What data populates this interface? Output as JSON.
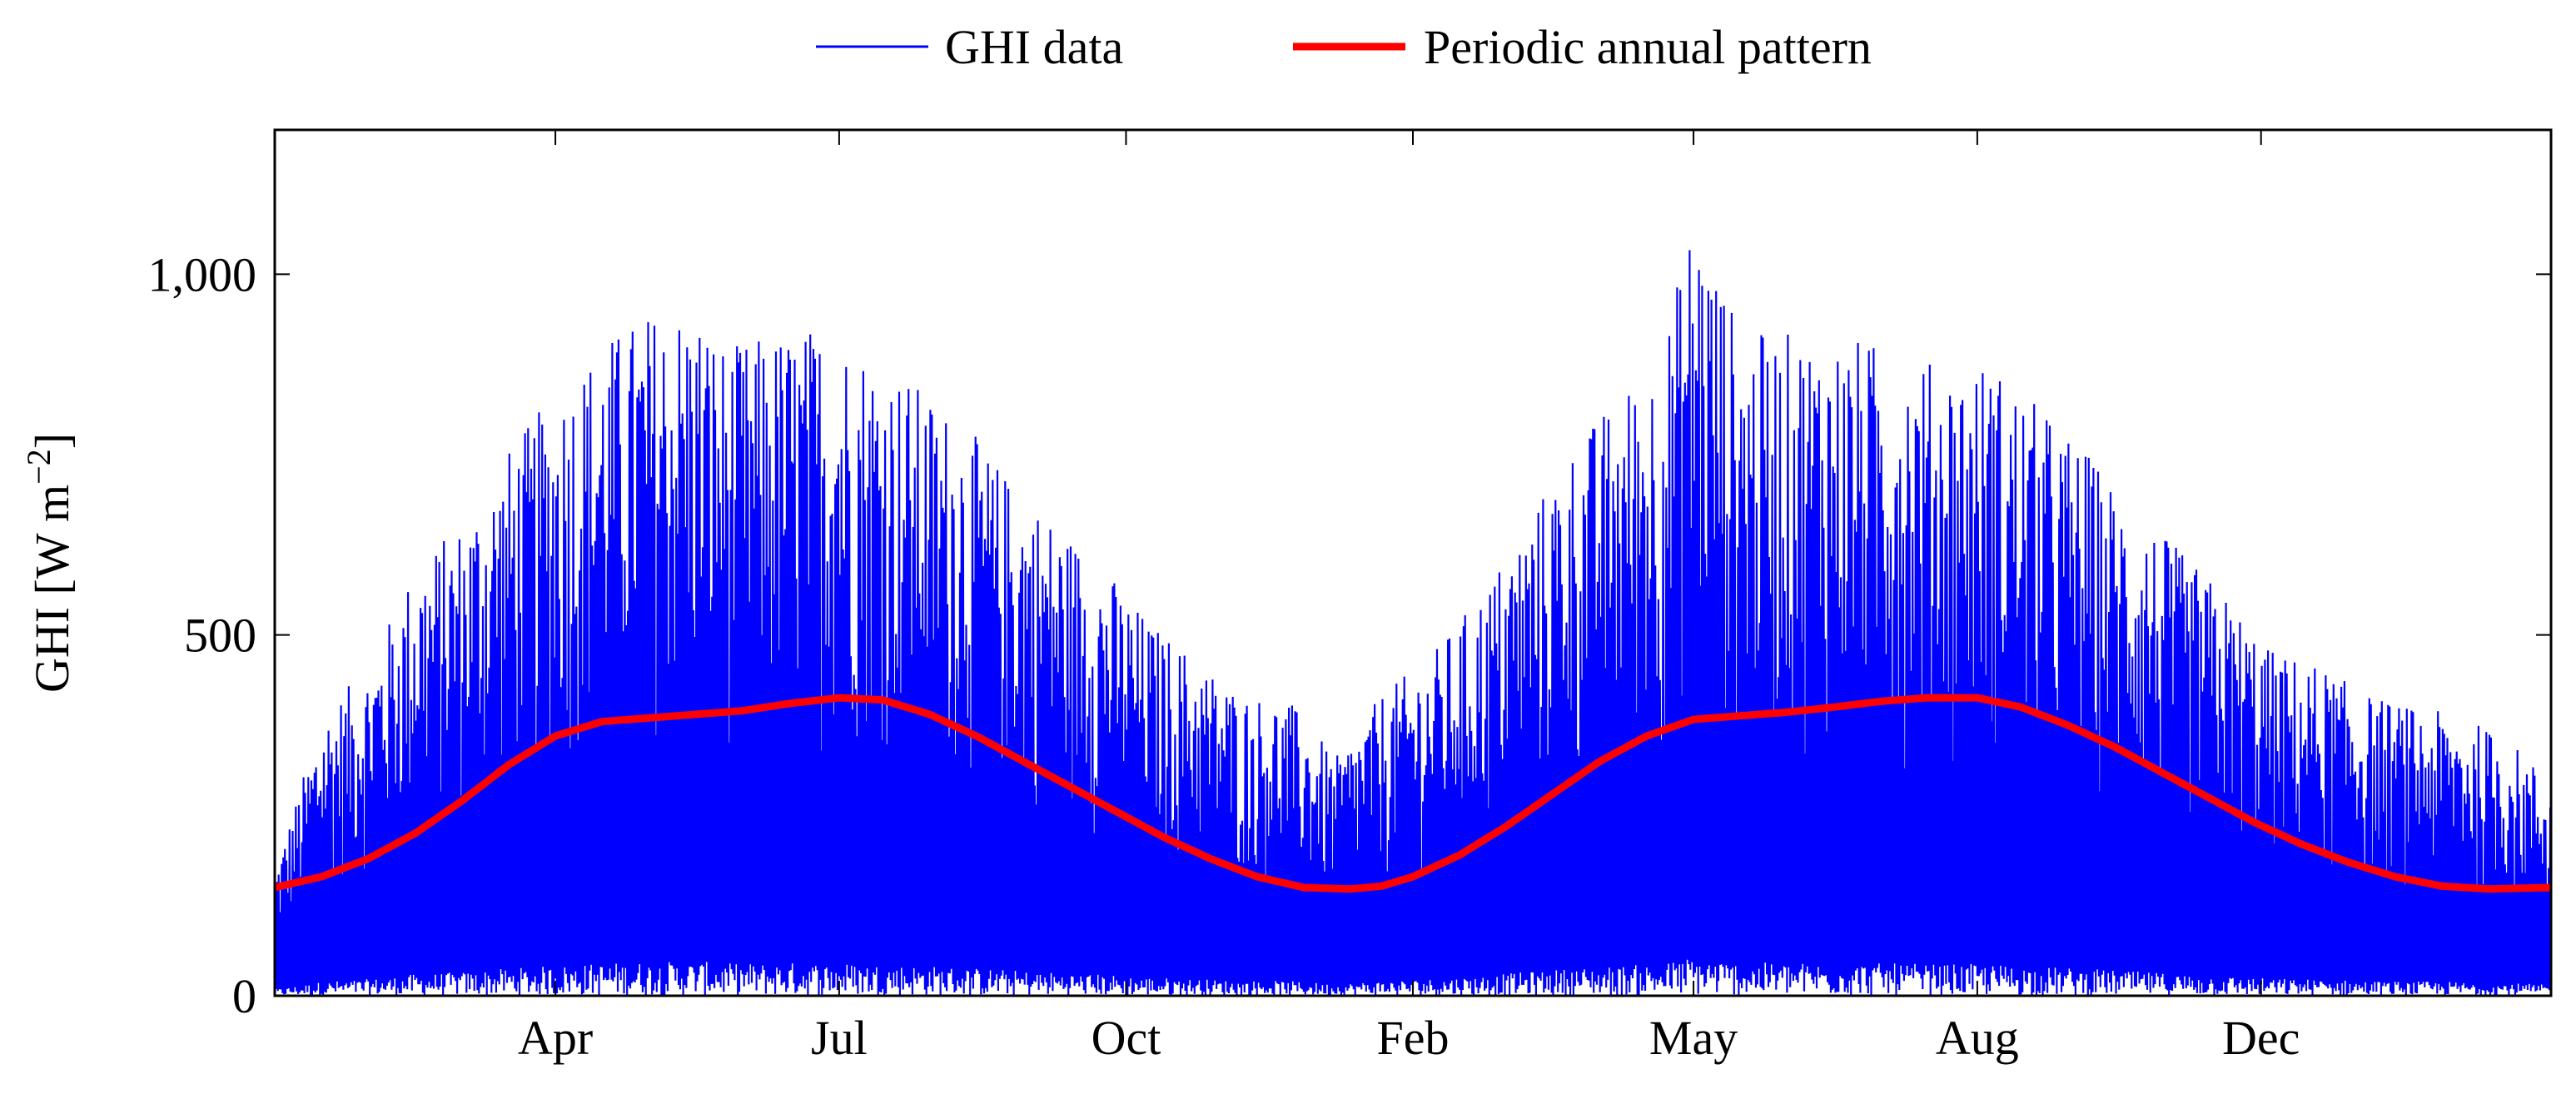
{
  "chart_data": {
    "type": "line",
    "title": "",
    "xlabel": "",
    "ylabel": "GHI [W m",
    "ylabel_sup": "−2",
    "ylabel_close": "]",
    "ylim": [
      0,
      1200
    ],
    "xlim": [
      0,
      730
    ],
    "grid": "major ticks only",
    "legend": {
      "position": "top-center",
      "entries": [
        "GHI data",
        "Periodic annual pattern"
      ]
    },
    "y_ticks": [
      {
        "value": 0,
        "label": "0"
      },
      {
        "value": 500,
        "label": "500"
      },
      {
        "value": 1000,
        "label": "1,000"
      }
    ],
    "x_ticks": [
      {
        "day": 90,
        "label": "Apr"
      },
      {
        "day": 181,
        "label": "Jul"
      },
      {
        "day": 273,
        "label": "Oct"
      },
      {
        "day": 365,
        "label": "Feb"
      },
      {
        "day": 455,
        "label": "May"
      },
      {
        "day": 546,
        "label": "Aug"
      },
      {
        "day": 637,
        "label": "Dec"
      }
    ],
    "series": [
      {
        "name": "GHI data",
        "color": "#0000ff",
        "style": "thin line",
        "note_values": "dense hourly series; envelope (daily max, day, W m^-2) sampled below",
        "envelope": [
          [
            0,
            180
          ],
          [
            15,
            390
          ],
          [
            30,
            460
          ],
          [
            45,
            600
          ],
          [
            60,
            660
          ],
          [
            75,
            760
          ],
          [
            90,
            840
          ],
          [
            105,
            910
          ],
          [
            120,
            950
          ],
          [
            135,
            960
          ],
          [
            145,
            900
          ],
          [
            160,
            920
          ],
          [
            175,
            930
          ],
          [
            190,
            900
          ],
          [
            205,
            850
          ],
          [
            220,
            800
          ],
          [
            235,
            720
          ],
          [
            250,
            660
          ],
          [
            265,
            600
          ],
          [
            280,
            520
          ],
          [
            295,
            470
          ],
          [
            310,
            420
          ],
          [
            325,
            410
          ],
          [
            340,
            330
          ],
          [
            355,
            420
          ],
          [
            370,
            470
          ],
          [
            385,
            550
          ],
          [
            400,
            650
          ],
          [
            415,
            760
          ],
          [
            430,
            830
          ],
          [
            445,
            900
          ],
          [
            455,
            1100
          ],
          [
            470,
            920
          ],
          [
            490,
            920
          ],
          [
            510,
            910
          ],
          [
            530,
            880
          ],
          [
            550,
            880
          ],
          [
            565,
            820
          ],
          [
            580,
            760
          ],
          [
            595,
            680
          ],
          [
            610,
            620
          ],
          [
            625,
            560
          ],
          [
            640,
            480
          ],
          [
            655,
            460
          ],
          [
            670,
            420
          ],
          [
            685,
            400
          ],
          [
            700,
            390
          ],
          [
            715,
            360
          ],
          [
            730,
            300
          ]
        ]
      },
      {
        "name": "Periodic annual pattern",
        "color": "#ff0000",
        "style": "thick line",
        "points": [
          [
            0,
            150
          ],
          [
            15,
            165
          ],
          [
            30,
            190
          ],
          [
            45,
            225
          ],
          [
            60,
            270
          ],
          [
            75,
            320
          ],
          [
            90,
            360
          ],
          [
            105,
            380
          ],
          [
            120,
            385
          ],
          [
            135,
            390
          ],
          [
            150,
            395
          ],
          [
            165,
            405
          ],
          [
            181,
            413
          ],
          [
            195,
            410
          ],
          [
            210,
            390
          ],
          [
            225,
            360
          ],
          [
            240,
            325
          ],
          [
            255,
            290
          ],
          [
            270,
            255
          ],
          [
            285,
            220
          ],
          [
            300,
            190
          ],
          [
            315,
            165
          ],
          [
            330,
            150
          ],
          [
            345,
            148
          ],
          [
            355,
            152
          ],
          [
            365,
            165
          ],
          [
            380,
            195
          ],
          [
            395,
            235
          ],
          [
            410,
            280
          ],
          [
            425,
            325
          ],
          [
            440,
            360
          ],
          [
            455,
            383
          ],
          [
            470,
            388
          ],
          [
            485,
            393
          ],
          [
            500,
            400
          ],
          [
            515,
            408
          ],
          [
            530,
            413
          ],
          [
            546,
            413
          ],
          [
            560,
            400
          ],
          [
            575,
            375
          ],
          [
            590,
            345
          ],
          [
            605,
            310
          ],
          [
            620,
            275
          ],
          [
            635,
            240
          ],
          [
            650,
            210
          ],
          [
            665,
            185
          ],
          [
            680,
            165
          ],
          [
            695,
            152
          ],
          [
            710,
            148
          ],
          [
            730,
            150
          ]
        ]
      }
    ]
  }
}
